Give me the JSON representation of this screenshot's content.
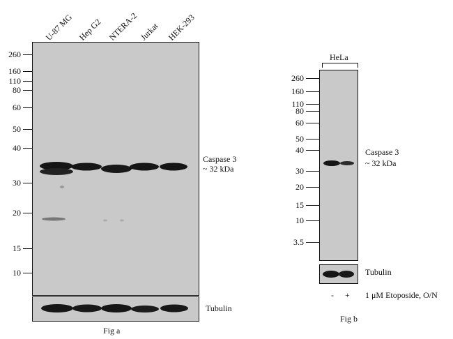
{
  "fig_a": {
    "lanes": [
      "U-87 MG",
      "Hep G2",
      "NTERA-2",
      "Jurkat",
      "HEK-293"
    ],
    "markers": [
      "260",
      "160",
      "110",
      "80",
      "60",
      "50",
      "40",
      "30",
      "20",
      "15",
      "10"
    ],
    "target_label_1": "Caspase 3",
    "target_label_2": "~  32 kDa",
    "loading_label": "Tubulin",
    "caption": "Fig a"
  },
  "fig_b": {
    "sample": "HeLa",
    "markers": [
      "260",
      "160",
      "110",
      "80",
      "60",
      "50",
      "40",
      "30",
      "20",
      "15",
      "10",
      "3.5"
    ],
    "target_label_1": "Caspase 3",
    "target_label_2": "~ 32 kDa",
    "loading_label": "Tubulin",
    "treatment_minus": "-",
    "treatment_plus": "+",
    "treatment_label": "1 μM  Etoposide, O/N",
    "caption": "Fig b"
  }
}
